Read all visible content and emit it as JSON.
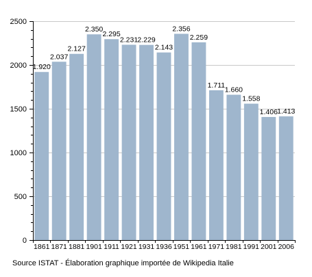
{
  "colors": {
    "bar": "#9fb6cd",
    "grid": "#c8c8c8",
    "axis": "#000000",
    "text": "#000000"
  },
  "source_note": "Source ISTAT - Élaboration graphique importée de Wikipedia Italie",
  "chart_data": {
    "type": "bar",
    "title": "",
    "xlabel": "",
    "ylabel": "",
    "ylim": [
      0,
      2500
    ],
    "yticks": [
      0,
      500,
      1000,
      1500,
      2000,
      2500
    ],
    "grid": true,
    "categories": [
      "1861",
      "1871",
      "1881",
      "1901",
      "1911",
      "1921",
      "1931",
      "1936",
      "1951",
      "1961",
      "1971",
      "1981",
      "1991",
      "2001",
      "2006"
    ],
    "values": [
      1920,
      2037,
      2127,
      2350,
      2295,
      2231,
      2229,
      2143,
      2356,
      2259,
      1711,
      1660,
      1558,
      1406,
      1413
    ],
    "value_labels": [
      "1.920",
      "2.037",
      "2.127",
      "2.350",
      "2.295",
      "2.231",
      "2.229",
      "2.143",
      "2.356",
      "2.259",
      "1.711",
      "1.660",
      "1.558",
      "1.406",
      "1.413"
    ]
  }
}
